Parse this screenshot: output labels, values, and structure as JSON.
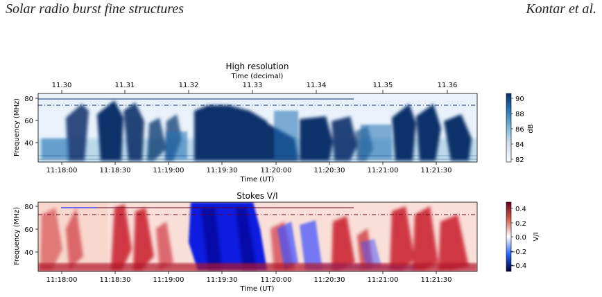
{
  "header": {
    "left": "Solar radio burst fine structures",
    "right": "Kontar et al."
  },
  "figure": {
    "panel_top": {
      "title": "High resolution",
      "top_axis_label": "Time (decimal)",
      "top_ticks": [
        "11.30",
        "11.31",
        "11.32",
        "11.33",
        "11.34",
        "11.35",
        "11.36"
      ],
      "ylabel": "Frequency (MHz)",
      "xlabel": "Time (UT)",
      "y_ticks": [
        "40",
        "60",
        "80"
      ],
      "x_ticks": [
        "11:18:00",
        "11:18:30",
        "11:19:00",
        "11:19:30",
        "11:20:00",
        "11:20:30",
        "11:21:00",
        "11:21:30"
      ],
      "colorbar_label": "dB",
      "colorbar_ticks": [
        "82",
        "84",
        "86",
        "88",
        "90"
      ],
      "colorbar_colors": [
        "#f7fbff",
        "#c6dbef",
        "#6baed6",
        "#2171b5",
        "#08306b"
      ]
    },
    "panel_bottom": {
      "title": "Stokes V/I",
      "ylabel": "Frequency (MHz)",
      "xlabel": "Time (UT)",
      "y_ticks": [
        "40",
        "60",
        "80"
      ],
      "x_ticks": [
        "11:18:00",
        "11:18:30",
        "11:19:00",
        "11:19:30",
        "11:20:00",
        "11:20:30",
        "11:21:00",
        "11:21:30"
      ],
      "colorbar_label": "V/I",
      "colorbar_ticks": [
        "0.4",
        "0.2",
        "0.0",
        "−0.2",
        "−0.4"
      ],
      "colorbar_colors": [
        "#67001f",
        "#d6604d",
        "#ffffff",
        "#2166ff",
        "#00003c"
      ]
    }
  }
}
